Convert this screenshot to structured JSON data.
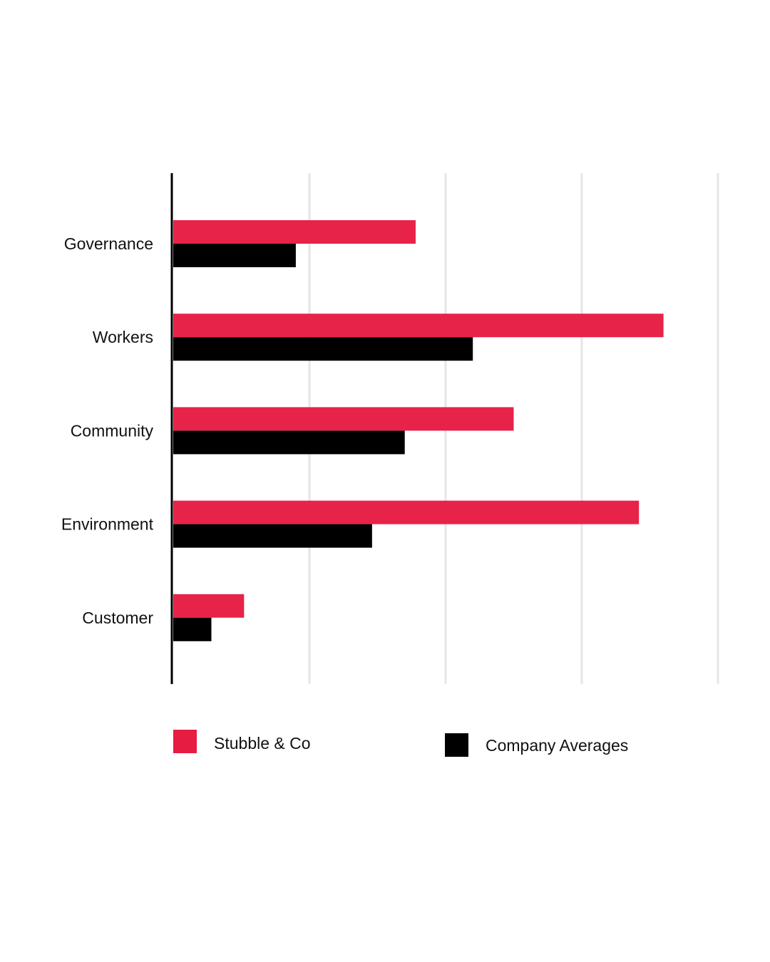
{
  "chart_data": {
    "type": "bar",
    "orientation": "horizontal",
    "categories": [
      "Governance",
      "Workers",
      "Community",
      "Environment",
      "Customer"
    ],
    "series": [
      {
        "name": "Stubble & Co",
        "color": "#e61c43",
        "values": [
          89,
          180,
          125,
          171,
          26
        ]
      },
      {
        "name": "Company Averages",
        "color": "#000000",
        "values": [
          45,
          110,
          85,
          73,
          14
        ]
      }
    ],
    "xlim": [
      0,
      200
    ],
    "x_gridlines": [
      50,
      100,
      150,
      200
    ],
    "grid": true,
    "tick_labels_shown": false,
    "legend": {
      "position": "bottom"
    },
    "title": "",
    "xlabel": "",
    "ylabel": ""
  }
}
